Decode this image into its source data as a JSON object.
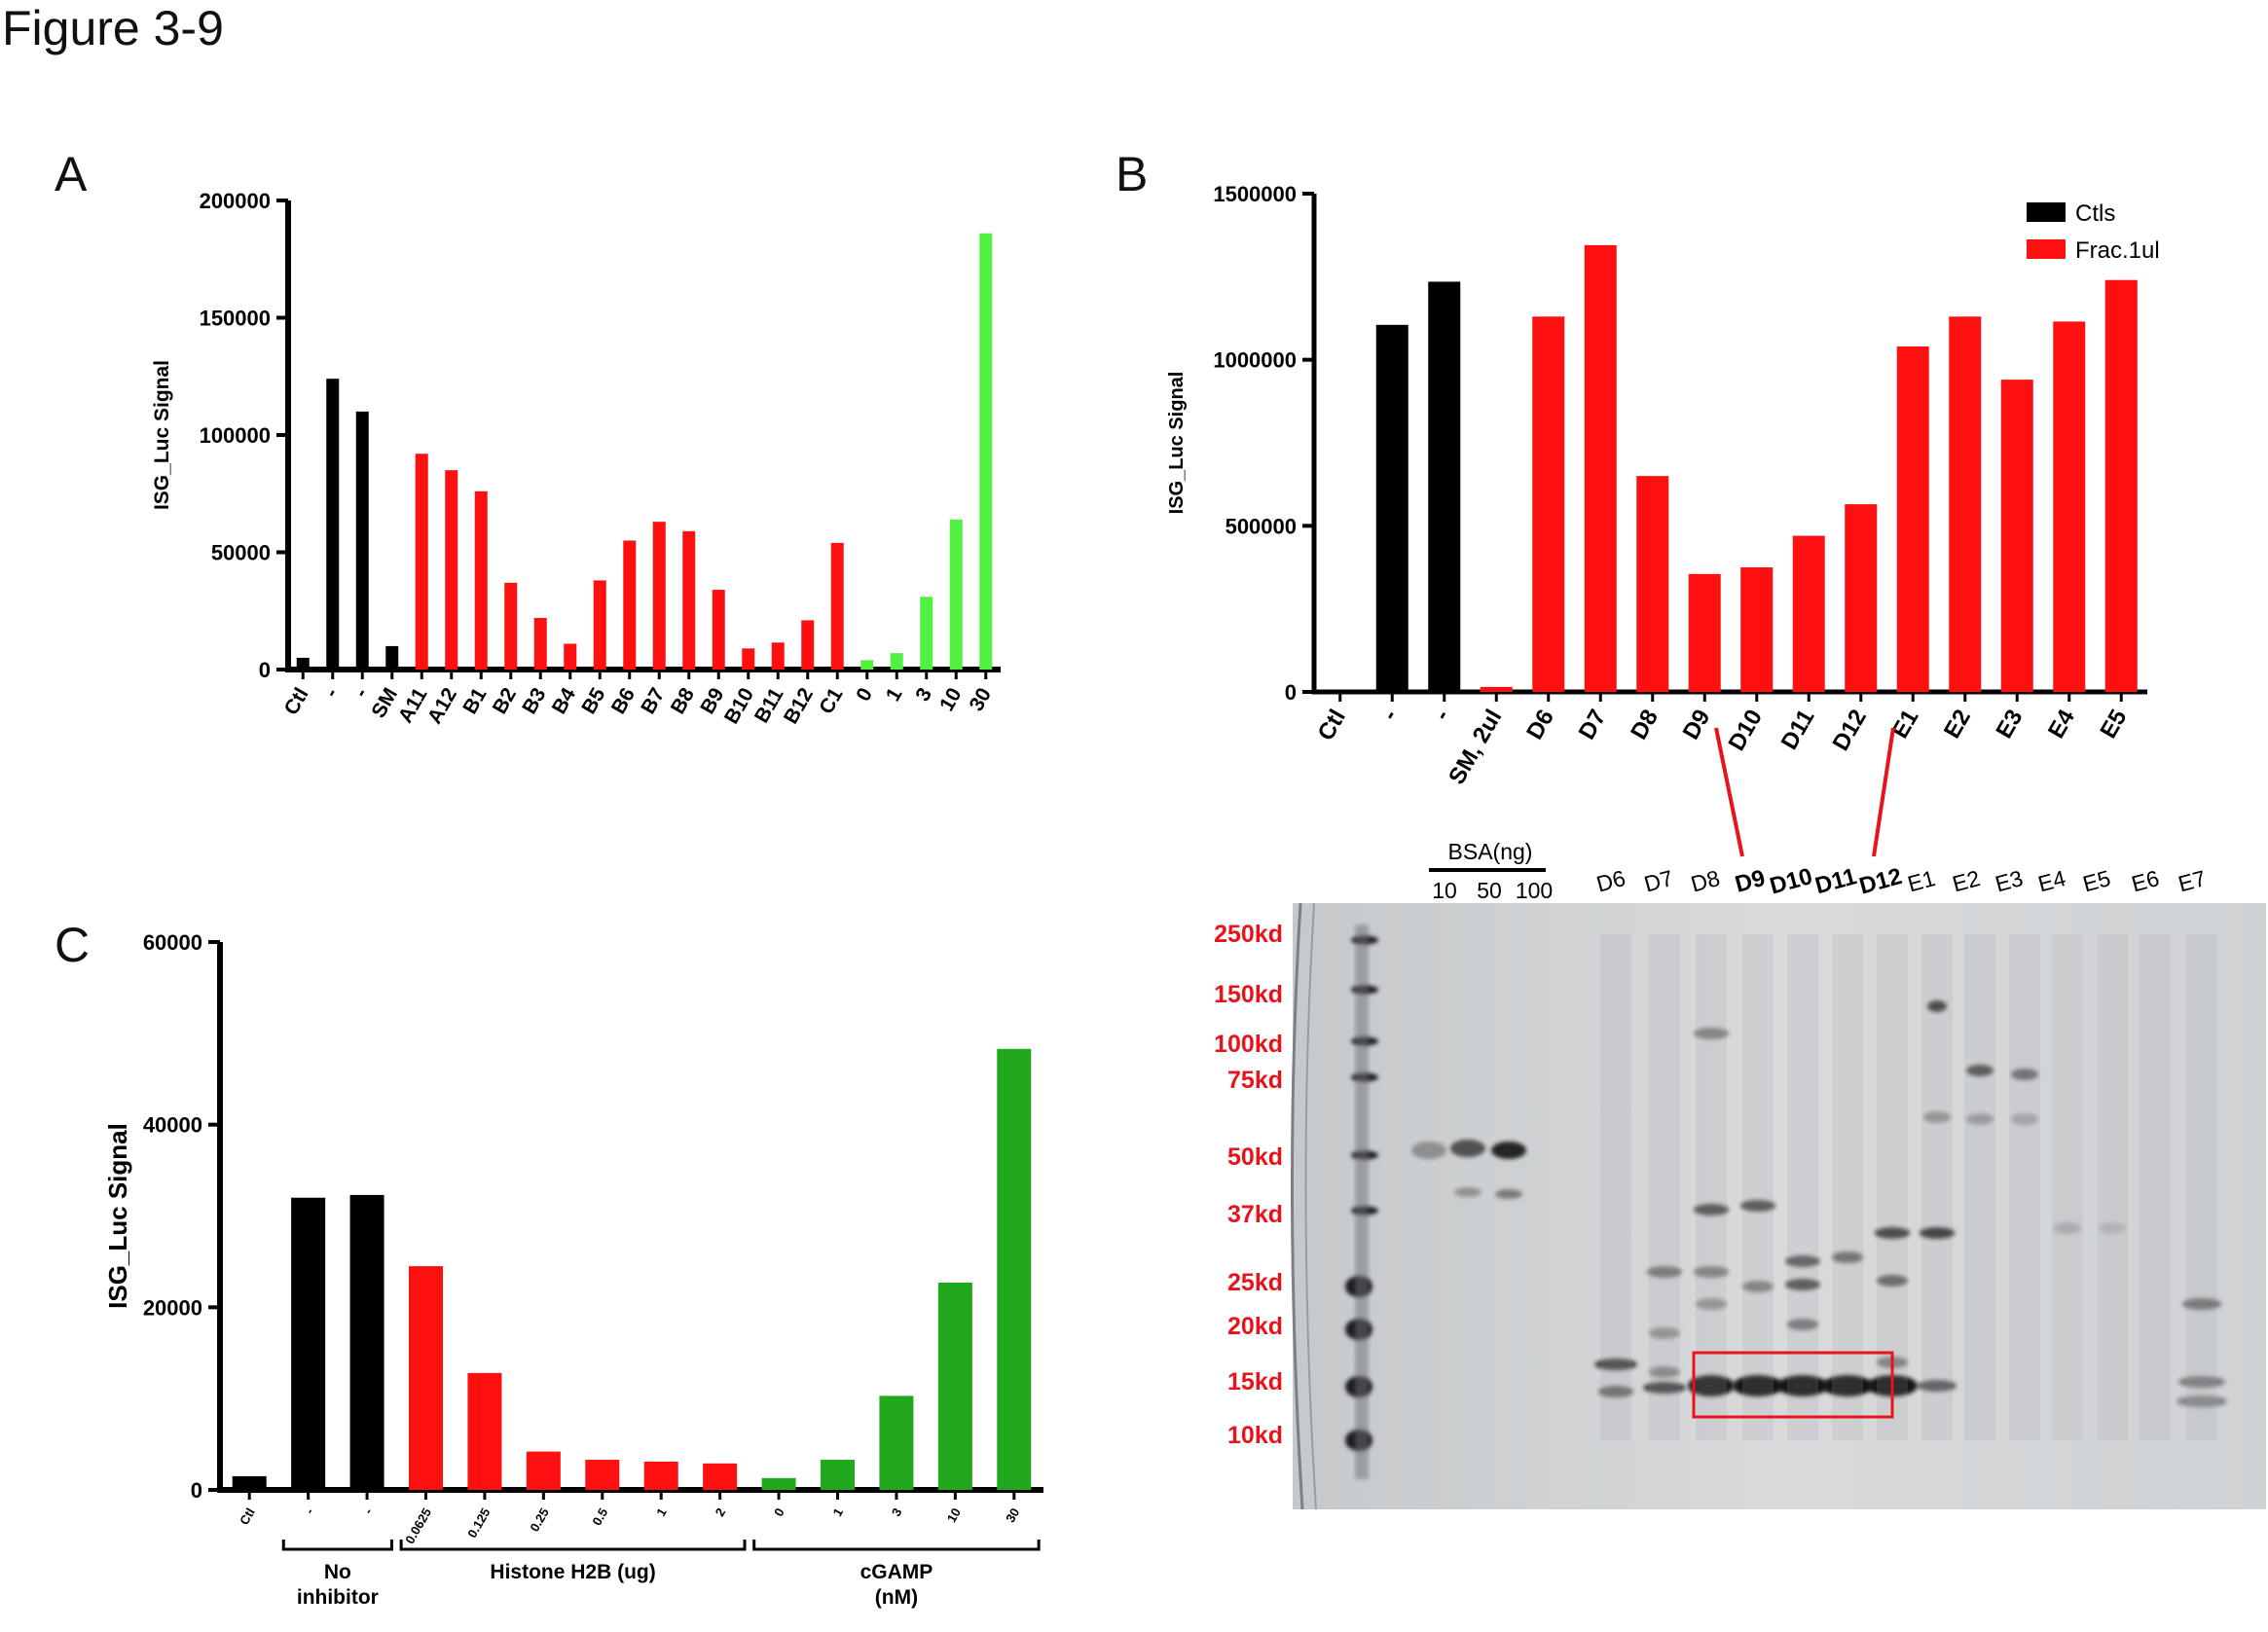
{
  "figure_title": "Figure 3-9",
  "panels": {
    "a": "A",
    "b": "B",
    "c": "C"
  },
  "colors": {
    "black": "#000000",
    "red": "#ff1010",
    "light_green": "#52f040",
    "green": "#22a81c",
    "marker_red": "#e8141b"
  },
  "chart_data": [
    {
      "panel": "A",
      "type": "bar",
      "ylabel": "ISG_Luc Signal",
      "ylim": [
        0,
        200000
      ],
      "yticks": [
        "0",
        "50000",
        "100000",
        "150000",
        "200000"
      ],
      "ytick_values": [
        0,
        50000,
        100000,
        150000,
        200000
      ],
      "categories": [
        "Ctl",
        "-",
        "-",
        "SM",
        "A11",
        "A12",
        "B1",
        "B2",
        "B3",
        "B4",
        "B5",
        "B6",
        "B7",
        "B8",
        "B9",
        "B10",
        "B11",
        "B12",
        "C1",
        "0",
        "1",
        "3",
        "10",
        "30"
      ],
      "values": [
        5000,
        124000,
        110000,
        10000,
        92000,
        85000,
        76000,
        37000,
        22000,
        11000,
        38000,
        55000,
        63000,
        59000,
        34000,
        9000,
        11500,
        21000,
        54000,
        4000,
        7000,
        31000,
        64000,
        186000
      ],
      "bar_colors": [
        "black",
        "black",
        "black",
        "black",
        "red",
        "red",
        "red",
        "red",
        "red",
        "red",
        "red",
        "red",
        "red",
        "red",
        "red",
        "red",
        "red",
        "red",
        "red",
        "light_green",
        "light_green",
        "light_green",
        "light_green",
        "light_green"
      ]
    },
    {
      "panel": "B",
      "type": "bar",
      "ylabel": "ISG_Luc Signal",
      "ylim": [
        0,
        1500000
      ],
      "yticks": [
        "0",
        "500000",
        "1000000",
        "1500000"
      ],
      "ytick_values": [
        0,
        500000,
        1000000,
        1500000
      ],
      "categories": [
        "Ctl",
        "-",
        "-",
        "SM, 2ul",
        "D6",
        "D7",
        "D8",
        "D9",
        "D10",
        "D11",
        "D12",
        "E1",
        "E2",
        "E3",
        "E4",
        "E5"
      ],
      "values": [
        5000,
        1105000,
        1235000,
        15000,
        1130000,
        1345000,
        650000,
        355000,
        375000,
        470000,
        565000,
        1040000,
        1130000,
        940000,
        1115000,
        1240000
      ],
      "bar_colors": [
        "black",
        "black",
        "black",
        "red",
        "red",
        "red",
        "red",
        "red",
        "red",
        "red",
        "red",
        "red",
        "red",
        "red",
        "red",
        "red"
      ],
      "legend": [
        {
          "name": "Ctls",
          "color": "black"
        },
        {
          "name": "Frac.1ul",
          "color": "red"
        }
      ]
    },
    {
      "panel": "C",
      "type": "bar",
      "ylabel": "ISG_Luc Signal",
      "ylim": [
        0,
        60000
      ],
      "yticks": [
        "0",
        "20000",
        "40000",
        "60000"
      ],
      "ytick_values": [
        0,
        20000,
        40000,
        60000
      ],
      "categories": [
        "Ctl",
        "-",
        "-",
        "0.0625",
        "0.125",
        "0.25",
        "0.5",
        "1",
        "2",
        "0",
        "1",
        "3",
        "10",
        "30"
      ],
      "values": [
        1500,
        32000,
        32300,
        24500,
        12800,
        4200,
        3300,
        3100,
        2900,
        1300,
        3300,
        10300,
        22700,
        48300
      ],
      "bar_colors": [
        "black",
        "black",
        "black",
        "red",
        "red",
        "red",
        "red",
        "red",
        "red",
        "green",
        "green",
        "green",
        "green",
        "green"
      ],
      "groups": [
        {
          "line1": "No",
          "line2": "inhibitor",
          "from": 1,
          "to": 2
        },
        {
          "line1": "Histone H2B (ug)",
          "line2": "",
          "from": 3,
          "to": 8
        },
        {
          "line1": "cGAMP",
          "line2": "(nM)",
          "from": 9,
          "to": 13
        }
      ]
    }
  ],
  "gel": {
    "bsa_label": "BSA(ng)",
    "bsa_amounts": [
      "10",
      "50",
      "100"
    ],
    "lanes": [
      {
        "label": "D6",
        "highlight": false
      },
      {
        "label": "D7",
        "highlight": false
      },
      {
        "label": "D8",
        "highlight": false
      },
      {
        "label": "D9",
        "highlight": true
      },
      {
        "label": "D10",
        "highlight": true
      },
      {
        "label": "D11",
        "highlight": true
      },
      {
        "label": "D12",
        "highlight": true
      },
      {
        "label": "E1",
        "highlight": false
      },
      {
        "label": "E2",
        "highlight": false
      },
      {
        "label": "E3",
        "highlight": false
      },
      {
        "label": "E4",
        "highlight": false
      },
      {
        "label": "E5",
        "highlight": false
      },
      {
        "label": "E6",
        "highlight": false
      },
      {
        "label": "E7",
        "highlight": false
      }
    ],
    "markers": [
      "250kd",
      "150kd",
      "100kd",
      "75kd",
      "50kd",
      "37kd",
      "25kd",
      "20kd",
      "15kd",
      "10kd"
    ]
  }
}
